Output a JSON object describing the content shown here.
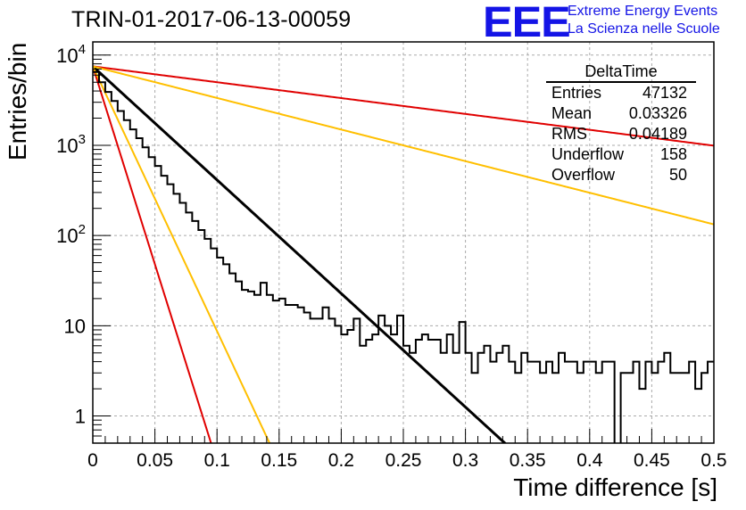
{
  "header": {
    "title": "TRIN-01-2017-06-13-00059",
    "logo_text": "EEE",
    "logo_line1": "Extreme Energy Events",
    "logo_line2": "La Scienza nelle Scuole"
  },
  "stats": {
    "name": "DeltaTime",
    "rows": [
      {
        "label": "Entries",
        "value": "47132"
      },
      {
        "label": "Mean",
        "value": "0.03326"
      },
      {
        "label": "RMS",
        "value": "0.04189"
      },
      {
        "label": "Underflow",
        "value": "158"
      },
      {
        "label": "Overflow",
        "value": "50"
      }
    ]
  },
  "chart_data": {
    "type": "histogram",
    "title": "TRIN-01-2017-06-13-00059",
    "xlabel": "Time difference [s]",
    "ylabel": "Entries/bin",
    "xlim": [
      0,
      0.5
    ],
    "ylim": [
      0.5,
      14000
    ],
    "yscale": "log",
    "grid": true,
    "x_ticks": [
      "0",
      "0.05",
      "0.1",
      "0.15",
      "0.2",
      "0.25",
      "0.3",
      "0.35",
      "0.4",
      "0.45",
      "0.5"
    ],
    "y_ticks": [
      "1",
      "10",
      "10^2",
      "10^3",
      "10^4"
    ],
    "bin_width": 0.005,
    "histogram_counts": [
      6500,
      5000,
      3900,
      3100,
      2400,
      1900,
      1500,
      1200,
      950,
      740,
      590,
      460,
      370,
      290,
      230,
      180,
      145,
      115,
      92,
      72,
      57,
      48,
      38,
      31,
      25,
      24,
      22,
      30,
      22,
      19,
      20,
      17,
      17,
      16,
      14,
      12,
      12,
      16,
      12,
      10,
      8,
      9,
      12,
      6,
      7,
      8,
      13,
      10,
      8,
      13,
      6,
      5,
      7,
      8,
      7,
      7,
      5,
      8,
      5,
      11,
      5,
      3,
      5,
      6,
      4,
      5,
      6,
      4,
      3,
      5,
      4,
      4,
      3,
      4,
      3,
      5,
      4,
      4,
      3,
      4,
      4,
      3,
      4,
      4,
      0,
      3,
      3,
      4,
      2,
      4,
      3,
      4,
      5,
      3,
      3,
      3,
      4,
      2,
      3,
      4
    ],
    "series": [
      {
        "color": "#000000",
        "y0": 7500,
        "tau": 0.0345
      },
      {
        "color": "#e00000",
        "y0": 7500,
        "tau": 0.247
      },
      {
        "color": "#e00000",
        "y0": 7500,
        "tau": 0.0099
      },
      {
        "color": "#ffbf00",
        "y0": 7500,
        "tau": 0.124
      },
      {
        "color": "#ffbf00",
        "y0": 7500,
        "tau": 0.0148
      }
    ]
  }
}
